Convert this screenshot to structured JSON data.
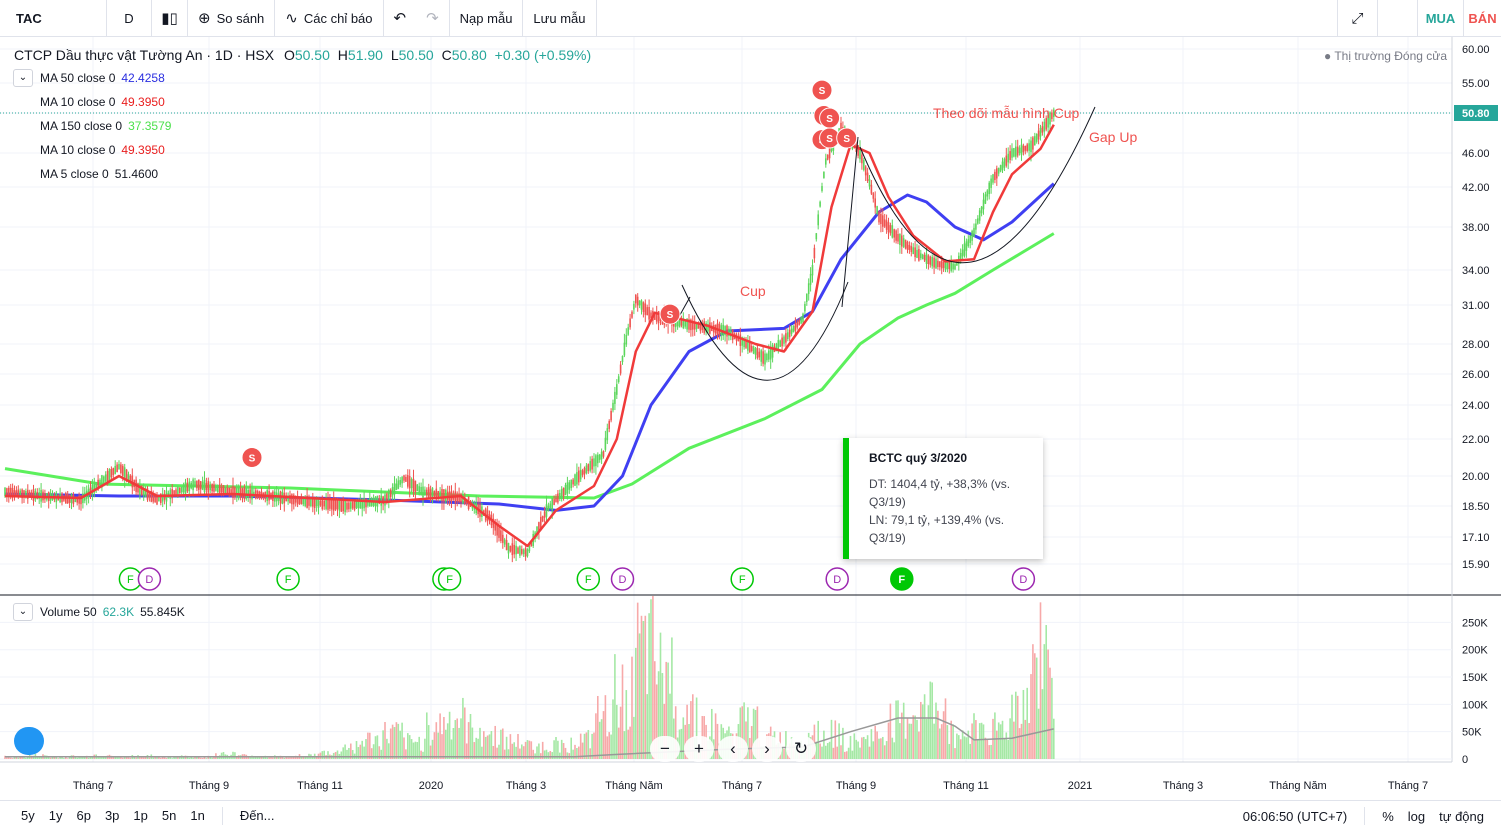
{
  "toolbar": {
    "symbol": "TAC",
    "interval": "D",
    "compare_label": "So sánh",
    "indicators_label": "Các chỉ báo",
    "templates_label": "Nạp mẫu",
    "save_label": "Lưu mẫu",
    "buy_label": "MUA",
    "sell_label": "BÁN"
  },
  "header": {
    "title": "CTCP Dầu thực vật Tường An · 1D · HSX",
    "o_label": "O",
    "o": "50.50",
    "h_label": "H",
    "h": "51.90",
    "l_label": "L",
    "l": "50.50",
    "c_label": "C",
    "c": "50.80",
    "change": "+0.30 (+0.59%)",
    "market_status": "● Thị trường Đóng cửa"
  },
  "indicators": [
    {
      "name": "MA 50 close 0",
      "value": "42.4258",
      "color": "#2a2ee0"
    },
    {
      "name": "MA 10 close 0",
      "value": "49.3950",
      "color": "#e91e1e"
    },
    {
      "name": "MA 150 close 0",
      "value": "37.3579",
      "color": "#4ce04c"
    },
    {
      "name": "MA 10 close 0",
      "value": "49.3950",
      "color": "#e91e1e"
    },
    {
      "name": "MA 5 close 0",
      "value": "51.4600",
      "color": "#131722"
    }
  ],
  "volume": {
    "name": "Volume 50",
    "value1": "62.3K",
    "value2": "55.845K"
  },
  "annotations": {
    "cup1": "Cup",
    "cup2": "Theo dõi mẫu hình Cup",
    "gap": "Gap Up"
  },
  "info_card": {
    "title": "BCTC quý 3/2020",
    "line1": "DT: 1404,4 tỷ, +38,3% (vs. Q3/19)",
    "line2": "LN: 79,1 tỷ, +139,4% (vs. Q3/19)"
  },
  "bottombar": {
    "ranges": [
      "5y",
      "1y",
      "6p",
      "3p",
      "1p",
      "5n",
      "1n"
    ],
    "goto": "Đến...",
    "time": "06:06:50 (UTC+7)",
    "percent": "%",
    "log": "log",
    "auto": "tự động"
  },
  "colors": {
    "up": "#26a69a",
    "up_fill": "#5cd65c",
    "down": "#ef5350",
    "ma50": "#3f3ff2",
    "ma10": "#f03a3a",
    "ma150": "#5cf05c"
  },
  "chart_data": {
    "type": "candlestick",
    "last_price": 50.8,
    "y_ticks": [
      60.0,
      55.0,
      50.8,
      46.0,
      42.0,
      38.0,
      34.0,
      31.0,
      28.0,
      26.0,
      24.0,
      22.0,
      20.0,
      18.5,
      17.1,
      15.9
    ],
    "y_tick_labels": [
      "60.00",
      "55.00",
      "50.80",
      "46.00",
      "42.00",
      "38.00",
      "34.00",
      "31.00",
      "28.00",
      "26.00",
      "24.00",
      "22.00",
      "20.00",
      "18.50",
      "17.10",
      "15.90"
    ],
    "x_tick_labels": [
      "Tháng 7",
      "Tháng 9",
      "Tháng 11",
      "2020",
      "Tháng 3",
      "Tháng Năm",
      "Tháng 7",
      "Tháng 9",
      "Tháng 11",
      "2021",
      "Tháng 3",
      "Tháng Năm",
      "Tháng 7"
    ],
    "volume_ticks": [
      "250K",
      "200K",
      "150K",
      "100K",
      "50K",
      "0"
    ],
    "price_path": [
      [
        0,
        19.2
      ],
      [
        20,
        19.0
      ],
      [
        40,
        18.8
      ],
      [
        60,
        20.5
      ],
      [
        70,
        19.4
      ],
      [
        80,
        18.8
      ],
      [
        100,
        19.6
      ],
      [
        120,
        19.2
      ],
      [
        140,
        19.0
      ],
      [
        160,
        18.7
      ],
      [
        180,
        18.5
      ],
      [
        200,
        18.8
      ],
      [
        210,
        19.9
      ],
      [
        220,
        19.2
      ],
      [
        240,
        18.9
      ],
      [
        255,
        18.0
      ],
      [
        265,
        16.6
      ],
      [
        275,
        16.4
      ],
      [
        285,
        18.3
      ],
      [
        300,
        19.8
      ],
      [
        315,
        21.2
      ],
      [
        322,
        25.0
      ],
      [
        328,
        29.0
      ],
      [
        332,
        31.5
      ],
      [
        340,
        30.2
      ],
      [
        360,
        29.5
      ],
      [
        380,
        29.0
      ],
      [
        400,
        27.0
      ],
      [
        410,
        28.3
      ],
      [
        420,
        30.0
      ],
      [
        425,
        34.0
      ],
      [
        432,
        45.0
      ],
      [
        440,
        49.0
      ],
      [
        450,
        46.0
      ],
      [
        460,
        39.0
      ],
      [
        470,
        37.0
      ],
      [
        480,
        35.5
      ],
      [
        490,
        34.6
      ],
      [
        500,
        34.3
      ],
      [
        510,
        37.5
      ],
      [
        520,
        43.0
      ],
      [
        530,
        46.0
      ],
      [
        540,
        46.8
      ],
      [
        548,
        49.5
      ],
      [
        552,
        50.8
      ]
    ],
    "ma10_path": [
      [
        0,
        19.0
      ],
      [
        40,
        18.9
      ],
      [
        60,
        20.0
      ],
      [
        80,
        19.0
      ],
      [
        120,
        19.1
      ],
      [
        160,
        18.9
      ],
      [
        200,
        18.7
      ],
      [
        240,
        19.0
      ],
      [
        260,
        17.6
      ],
      [
        275,
        16.7
      ],
      [
        290,
        18.3
      ],
      [
        310,
        19.5
      ],
      [
        322,
        22.0
      ],
      [
        332,
        27.5
      ],
      [
        342,
        30.4
      ],
      [
        370,
        29.4
      ],
      [
        395,
        28.0
      ],
      [
        410,
        27.5
      ],
      [
        425,
        30.5
      ],
      [
        435,
        40.0
      ],
      [
        445,
        47.0
      ],
      [
        455,
        46.0
      ],
      [
        465,
        41.0
      ],
      [
        478,
        37.2
      ],
      [
        495,
        34.8
      ],
      [
        510,
        35.0
      ],
      [
        520,
        39.5
      ],
      [
        530,
        43.5
      ],
      [
        545,
        46.5
      ],
      [
        552,
        49.4
      ]
    ],
    "ma50_path": [
      [
        0,
        19.1
      ],
      [
        60,
        19.0
      ],
      [
        120,
        19.0
      ],
      [
        200,
        18.8
      ],
      [
        260,
        18.6
      ],
      [
        290,
        18.3
      ],
      [
        310,
        18.5
      ],
      [
        325,
        20.0
      ],
      [
        340,
        24.0
      ],
      [
        360,
        27.5
      ],
      [
        380,
        29.0
      ],
      [
        410,
        29.2
      ],
      [
        425,
        30.5
      ],
      [
        440,
        35.0
      ],
      [
        460,
        39.5
      ],
      [
        475,
        41.2
      ],
      [
        485,
        40.5
      ],
      [
        500,
        38.0
      ],
      [
        515,
        36.8
      ],
      [
        530,
        38.5
      ],
      [
        552,
        42.4
      ]
    ],
    "ma150_path": [
      [
        0,
        20.4
      ],
      [
        50,
        19.6
      ],
      [
        150,
        19.4
      ],
      [
        250,
        19.0
      ],
      [
        310,
        18.9
      ],
      [
        330,
        19.6
      ],
      [
        360,
        21.5
      ],
      [
        400,
        23.2
      ],
      [
        430,
        25.0
      ],
      [
        450,
        28.0
      ],
      [
        470,
        30.0
      ],
      [
        485,
        31.0
      ],
      [
        500,
        32.0
      ],
      [
        520,
        34.0
      ],
      [
        552,
        37.4
      ]
    ],
    "sell_markers": [
      [
        130,
        21.0
      ],
      [
        350,
        30.3
      ],
      [
        430,
        54.0
      ],
      [
        431,
        50.5
      ],
      [
        434,
        50.2
      ],
      [
        430,
        47.6
      ],
      [
        434,
        47.8
      ],
      [
        443,
        47.8
      ]
    ],
    "event_markers": [
      {
        "x": 66,
        "kind": "F"
      },
      {
        "x": 76,
        "kind": "D"
      },
      {
        "x": 149,
        "kind": "F"
      },
      {
        "x": 231,
        "kind": "F"
      },
      {
        "x": 234,
        "kind": "F"
      },
      {
        "x": 307,
        "kind": "F"
      },
      {
        "x": 325,
        "kind": "D"
      },
      {
        "x": 388,
        "kind": "F"
      },
      {
        "x": 438,
        "kind": "D"
      },
      {
        "x": 472,
        "kind": "F",
        "filled": true
      },
      {
        "x": 536,
        "kind": "D"
      }
    ],
    "volume_bars_k": [
      5,
      8,
      4,
      6,
      10,
      5,
      7,
      4,
      6,
      5,
      12,
      8,
      6,
      5,
      9,
      15,
      30,
      45,
      60,
      40,
      80,
      95,
      70,
      55,
      40,
      30,
      35,
      45,
      100,
      160,
      250,
      200,
      120,
      80,
      60,
      90,
      50,
      45,
      70,
      60,
      40,
      55,
      90,
      110,
      130,
      60,
      80,
      75,
      140,
      265,
      80
    ]
  }
}
